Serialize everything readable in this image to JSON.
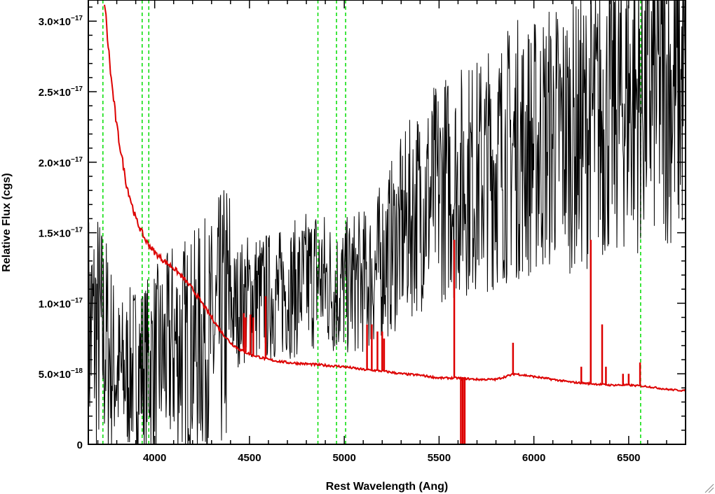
{
  "chart_data": {
    "type": "line",
    "title": "",
    "xlabel": "Rest Wavelength (Ang)",
    "ylabel": "Relative Flux (cgs)",
    "xlim": [
      3650,
      6800
    ],
    "ylim": [
      0,
      3.15e-17
    ],
    "x_ticks": [
      {
        "value": 4000,
        "label": "4000"
      },
      {
        "value": 4500,
        "label": "4500"
      },
      {
        "value": 5000,
        "label": "5000"
      },
      {
        "value": 5500,
        "label": "5500"
      },
      {
        "value": 6000,
        "label": "6000"
      },
      {
        "value": 6500,
        "label": "6500"
      }
    ],
    "y_ticks": [
      {
        "value": 0,
        "mant": "0",
        "exp": ""
      },
      {
        "value": 5e-18,
        "mant": "5.0×10",
        "exp": "−18"
      },
      {
        "value": 1e-17,
        "mant": "1.0×10",
        "exp": "−17"
      },
      {
        "value": 1.5e-17,
        "mant": "1.5×10",
        "exp": "−17"
      },
      {
        "value": 2e-17,
        "mant": "2.0×10",
        "exp": "−17"
      },
      {
        "value": 2.5e-17,
        "mant": "2.5×10",
        "exp": "−17"
      },
      {
        "value": 3e-17,
        "mant": "3.0×10",
        "exp": "−17"
      }
    ],
    "vertical_lines": {
      "color": "#00dd00",
      "style": "dashed",
      "x": [
        3727,
        3934,
        3969,
        4861,
        4959,
        5007,
        6563
      ]
    },
    "series": [
      {
        "color": "#000000",
        "style": "noisy-spectrum",
        "x": [
          3650,
          3700,
          3750,
          3800,
          3850,
          3900,
          3950,
          4000,
          4050,
          4100,
          4150,
          4200,
          4250,
          4300,
          4350,
          4400,
          4450,
          4500,
          4550,
          4600,
          4650,
          4700,
          4750,
          4800,
          4850,
          4900,
          4950,
          5000,
          5050,
          5100,
          5150,
          5200,
          5250,
          5300,
          5350,
          5400,
          5450,
          5500,
          5550,
          5600,
          5650,
          5700,
          5750,
          5800,
          5850,
          5900,
          5950,
          6000,
          6050,
          6100,
          6150,
          6200,
          6250,
          6300,
          6350,
          6400,
          6450,
          6500,
          6550,
          6600,
          6650,
          6700,
          6750,
          6800
        ],
        "y": [
          8e-18,
          8e-18,
          7e-18,
          5e-18,
          5e-18,
          5.5e-18,
          5.5e-18,
          6e-18,
          6e-18,
          7e-18,
          7e-18,
          7e-18,
          7.5e-18,
          7.5e-18,
          8.5e-18,
          9.5e-18,
          1e-17,
          1.05e-17,
          1.05e-17,
          1.05e-17,
          1.05e-17,
          1.1e-17,
          1.1e-17,
          1.15e-17,
          1.2e-17,
          1.15e-17,
          1.1e-17,
          1.1e-17,
          1.15e-17,
          1.15e-17,
          1.2e-17,
          1.3e-17,
          1.4e-17,
          1.5e-17,
          1.6e-17,
          1.7e-17,
          1.75e-17,
          1.8e-17,
          1.85e-17,
          1.85e-17,
          1.9e-17,
          1.9e-17,
          1.95e-17,
          2e-17,
          2.05e-17,
          2.1e-17,
          2.1e-17,
          2.1e-17,
          2.15e-17,
          2.2e-17,
          2.2e-17,
          2.2e-17,
          2.2e-17,
          2.3e-17,
          2.3e-17,
          2.35e-17,
          2.4e-17,
          2.45e-17,
          2.45e-17,
          2.5e-17,
          2.55e-17,
          2.55e-17,
          2.5e-17,
          2.5e-17
        ]
      },
      {
        "color": "#dd0000",
        "style": "model",
        "x": [
          3735,
          3750,
          3770,
          3800,
          3850,
          3900,
          3950,
          4000,
          4050,
          4100,
          4150,
          4200,
          4250,
          4300,
          4350,
          4400,
          4450,
          4500,
          4600,
          4700,
          4800,
          4900,
          5000,
          5100,
          5200,
          5300,
          5400,
          5500,
          5600,
          5700,
          5800,
          5900,
          6000,
          6100,
          6200,
          6300,
          6400,
          6500,
          6600,
          6700,
          6800
        ],
        "y": [
          3.15e-17,
          2.9e-17,
          2.6e-17,
          2.25e-17,
          1.85e-17,
          1.6e-17,
          1.45e-17,
          1.36e-17,
          1.3e-17,
          1.25e-17,
          1.18e-17,
          1.1e-17,
          1e-17,
          9e-18,
          8e-18,
          7.2e-18,
          6.7e-18,
          6.4e-18,
          6e-18,
          5.8e-18,
          5.7e-18,
          5.6e-18,
          5.5e-18,
          5.3e-18,
          5.2e-18,
          5e-18,
          4.9e-18,
          4.7e-18,
          4.7e-18,
          4.6e-18,
          4.6e-18,
          5e-18,
          4.8e-18,
          4.6e-18,
          4.4e-18,
          4.3e-18,
          4.2e-18,
          4.2e-18,
          4.1e-18,
          3.9e-18,
          3.8e-18
        ]
      }
    ],
    "emission_spikes": [
      {
        "x": 4470,
        "y": 9.3e-18
      },
      {
        "x": 4480,
        "y": 9e-18
      },
      {
        "x": 4505,
        "y": 9.2e-18
      },
      {
        "x": 4520,
        "y": 9e-18
      },
      {
        "x": 4585,
        "y": 1.05e-17
      },
      {
        "x": 5120,
        "y": 8.5e-18
      },
      {
        "x": 5145,
        "y": 8.5e-18
      },
      {
        "x": 5175,
        "y": 8e-18
      },
      {
        "x": 5200,
        "y": 8e-18
      },
      {
        "x": 5210,
        "y": 7.5e-18
      },
      {
        "x": 5580,
        "y": 1.45e-17
      },
      {
        "x": 5890,
        "y": 7.2e-18
      },
      {
        "x": 6250,
        "y": 5.5e-18
      },
      {
        "x": 6300,
        "y": 1.45e-17
      },
      {
        "x": 6360,
        "y": 8.5e-18
      },
      {
        "x": 6380,
        "y": 5.5e-18
      },
      {
        "x": 6470,
        "y": 5e-18
      },
      {
        "x": 6500,
        "y": 5e-18
      },
      {
        "x": 6560,
        "y": 5.8e-18
      }
    ],
    "absorption_dips": [
      {
        "x": 5615,
        "y": 0.0
      },
      {
        "x": 5625,
        "y": 0.0
      },
      {
        "x": 5635,
        "y": 0.0
      }
    ],
    "grid": false,
    "legend": "none"
  }
}
